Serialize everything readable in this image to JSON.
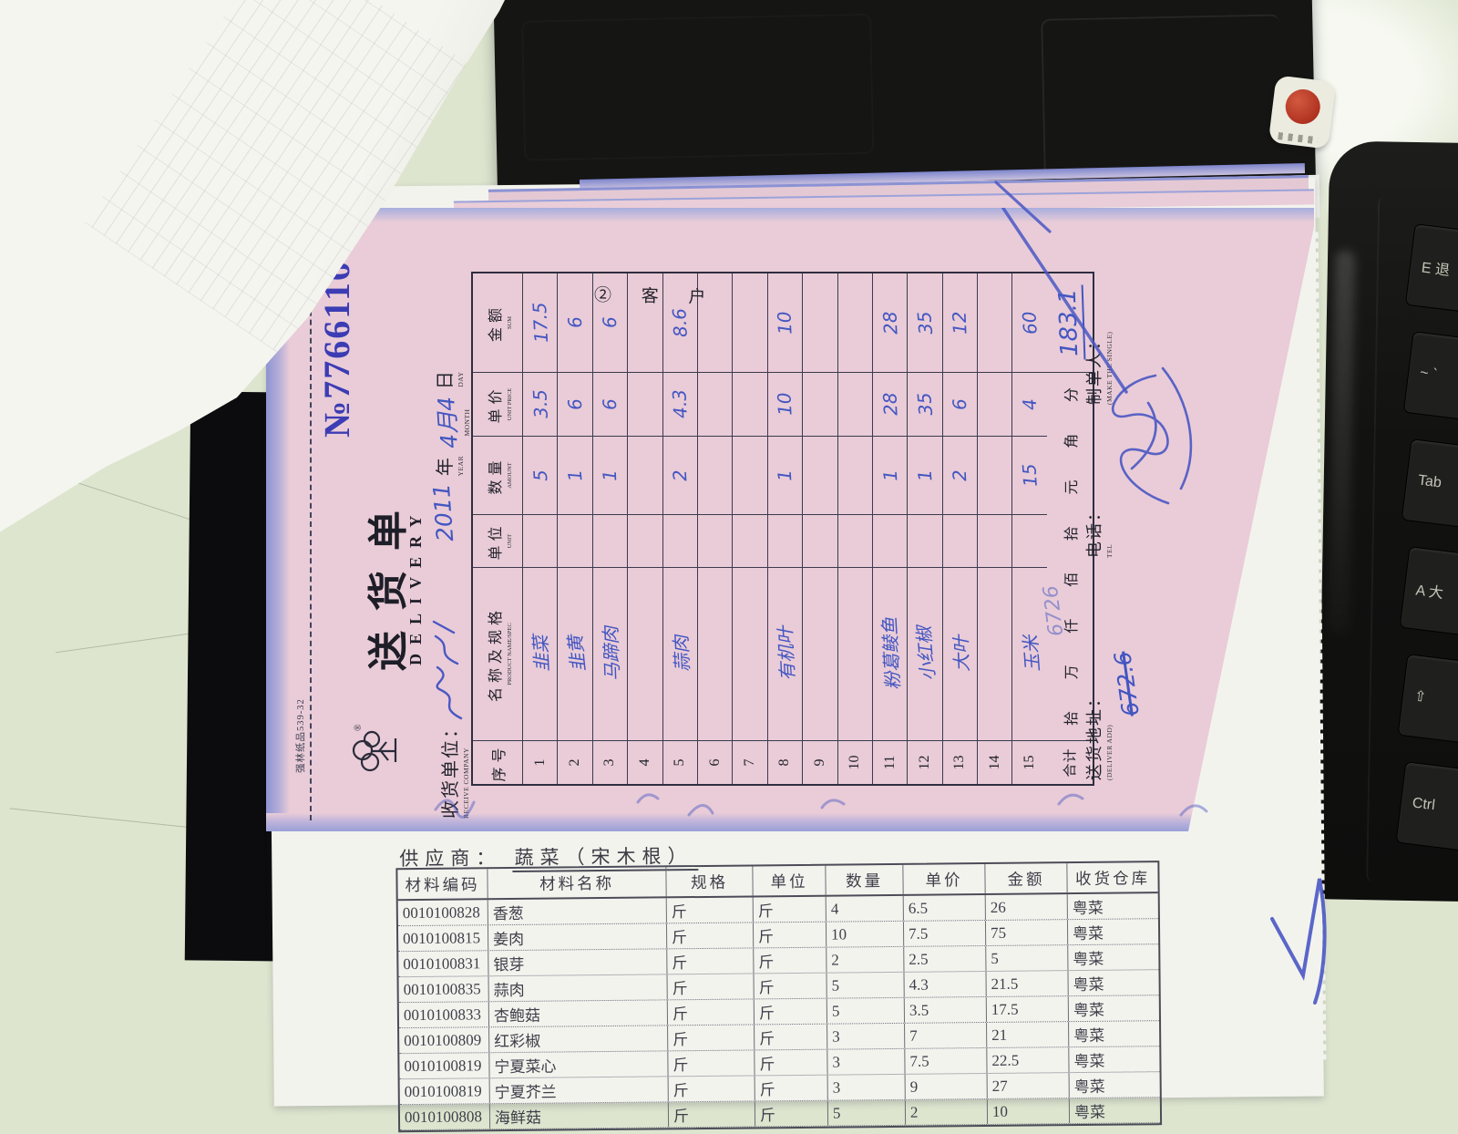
{
  "colors": {
    "pink_paper": "#e9ccd7",
    "blue_ink": "#4356c2",
    "print_blue": "#3c3cb4",
    "desk": "#dde5cf",
    "laptop_black": "#151514",
    "keyboard_black": "#131312",
    "red_button": "#b03220",
    "white_sheet": "#f3f3ee"
  },
  "delivery_form": {
    "brand_edge_text": "强林纸品539-32",
    "logo_registered_mark": "®",
    "title": "送货单",
    "title_en": "DELIVERY",
    "number": "№7766116",
    "copy_label": "② 客 户",
    "receive_company_label": "收货单位：",
    "receive_company_label_en": "RECEIVE COMPANY",
    "date": {
      "hand_year": "2011",
      "year": "年",
      "year_en": "YEAR",
      "hand_monthday": "4月4",
      "month_en": "MONTH",
      "day": "日",
      "day_en": "DAY"
    },
    "columns": [
      {
        "zh": "序号",
        "en": ""
      },
      {
        "zh": "名称及规格",
        "en": "PRODUCT NAME/SPEC"
      },
      {
        "zh": "单位",
        "en": "UNIT"
      },
      {
        "zh": "数量",
        "en": "AMOUNT"
      },
      {
        "zh": "单价",
        "en": "UNIT PRICE"
      },
      {
        "zh": "金额",
        "en": "SUM"
      }
    ],
    "rows": [
      {
        "no": "1",
        "name": "韭菜",
        "unit": "",
        "qty": "5",
        "price": "3.5",
        "sum": "17.5"
      },
      {
        "no": "2",
        "name": "韭黄",
        "unit": "",
        "qty": "1",
        "price": "6",
        "sum": "6"
      },
      {
        "no": "3",
        "name": "马蹄肉",
        "unit": "",
        "qty": "1",
        "price": "6",
        "sum": "6"
      },
      {
        "no": "4",
        "name": "",
        "unit": "",
        "qty": "",
        "price": "",
        "sum": ""
      },
      {
        "no": "5",
        "name": "蒜肉",
        "unit": "",
        "qty": "2",
        "price": "4.3",
        "sum": "8.6"
      },
      {
        "no": "6",
        "name": "",
        "unit": "",
        "qty": "",
        "price": "",
        "sum": ""
      },
      {
        "no": "7",
        "name": "",
        "unit": "",
        "qty": "",
        "price": "",
        "sum": ""
      },
      {
        "no": "8",
        "name": "有机叶",
        "unit": "",
        "qty": "1",
        "price": "10",
        "sum": "10"
      },
      {
        "no": "9",
        "name": "",
        "unit": "",
        "qty": "",
        "price": "",
        "sum": ""
      },
      {
        "no": "10",
        "name": "",
        "unit": "",
        "qty": "",
        "price": "",
        "sum": ""
      },
      {
        "no": "11",
        "name": "粉葛鲮鱼",
        "unit": "",
        "qty": "1",
        "price": "28",
        "sum": "28"
      },
      {
        "no": "12",
        "name": "小红椒",
        "unit": "",
        "qty": "1",
        "price": "35",
        "sum": "35"
      },
      {
        "no": "13",
        "name": "大叶",
        "unit": "",
        "qty": "2",
        "price": "6",
        "sum": "12"
      },
      {
        "no": "14",
        "name": "",
        "unit": "",
        "qty": "",
        "price": "",
        "sum": ""
      },
      {
        "no": "15",
        "name": "玉米",
        "unit": "",
        "qty": "15",
        "price": "4",
        "sum": "60"
      }
    ],
    "total": {
      "label": "合计",
      "words": [
        "拾",
        "万",
        "仟",
        "佰",
        "拾",
        "元",
        "角",
        "分"
      ],
      "sum_hand": "183.1",
      "crossed_hand": "672.6",
      "ghost_hand": "6726"
    },
    "footer": {
      "deliver_label": "送货地址：",
      "deliver_en": "(DELIVER ADD)",
      "tel_label": "电话：",
      "tel_en": "TEL",
      "maker_label": "制单人：",
      "maker_en": "(MAKE THE SINGLE)"
    }
  },
  "supplier_sheet": {
    "supplier_label": "供应商：",
    "supplier_value": "蔬菜（宋木根）",
    "headers": [
      "材料编码",
      "材料名称",
      "规格",
      "单位",
      "数量",
      "单价",
      "金额",
      "收货仓库"
    ],
    "rows": [
      [
        "0010100828",
        "香葱",
        "斤",
        "斤",
        "4",
        "6.5",
        "26",
        "粤菜"
      ],
      [
        "0010100815",
        "姜肉",
        "斤",
        "斤",
        "10",
        "7.5",
        "75",
        "粤菜"
      ],
      [
        "0010100831",
        "银芽",
        "斤",
        "斤",
        "2",
        "2.5",
        "5",
        "粤菜"
      ],
      [
        "0010100835",
        "蒜肉",
        "斤",
        "斤",
        "5",
        "4.3",
        "21.5",
        "粤菜"
      ],
      [
        "0010100833",
        "杏鲍菇",
        "斤",
        "斤",
        "5",
        "3.5",
        "17.5",
        "粤菜"
      ],
      [
        "0010100809",
        "红彩椒",
        "斤",
        "斤",
        "3",
        "7",
        "21",
        "粤菜"
      ],
      [
        "0010100819",
        "宁夏菜心",
        "斤",
        "斤",
        "3",
        "7.5",
        "22.5",
        "粤菜"
      ],
      [
        "0010100819",
        "宁夏芥兰",
        "斤",
        "斤",
        "3",
        "9",
        "27",
        "粤菜"
      ],
      [
        "0010100808",
        "海鲜菇",
        "斤",
        "斤",
        "5",
        "2",
        "10",
        "粤菜"
      ]
    ]
  },
  "keyboard": {
    "keys": [
      {
        "label": "E 退"
      },
      {
        "label": "~ `"
      },
      {
        "label": "Tab"
      },
      {
        "label": "A 大"
      },
      {
        "label": "⇧"
      },
      {
        "label": "Ctrl"
      }
    ]
  }
}
